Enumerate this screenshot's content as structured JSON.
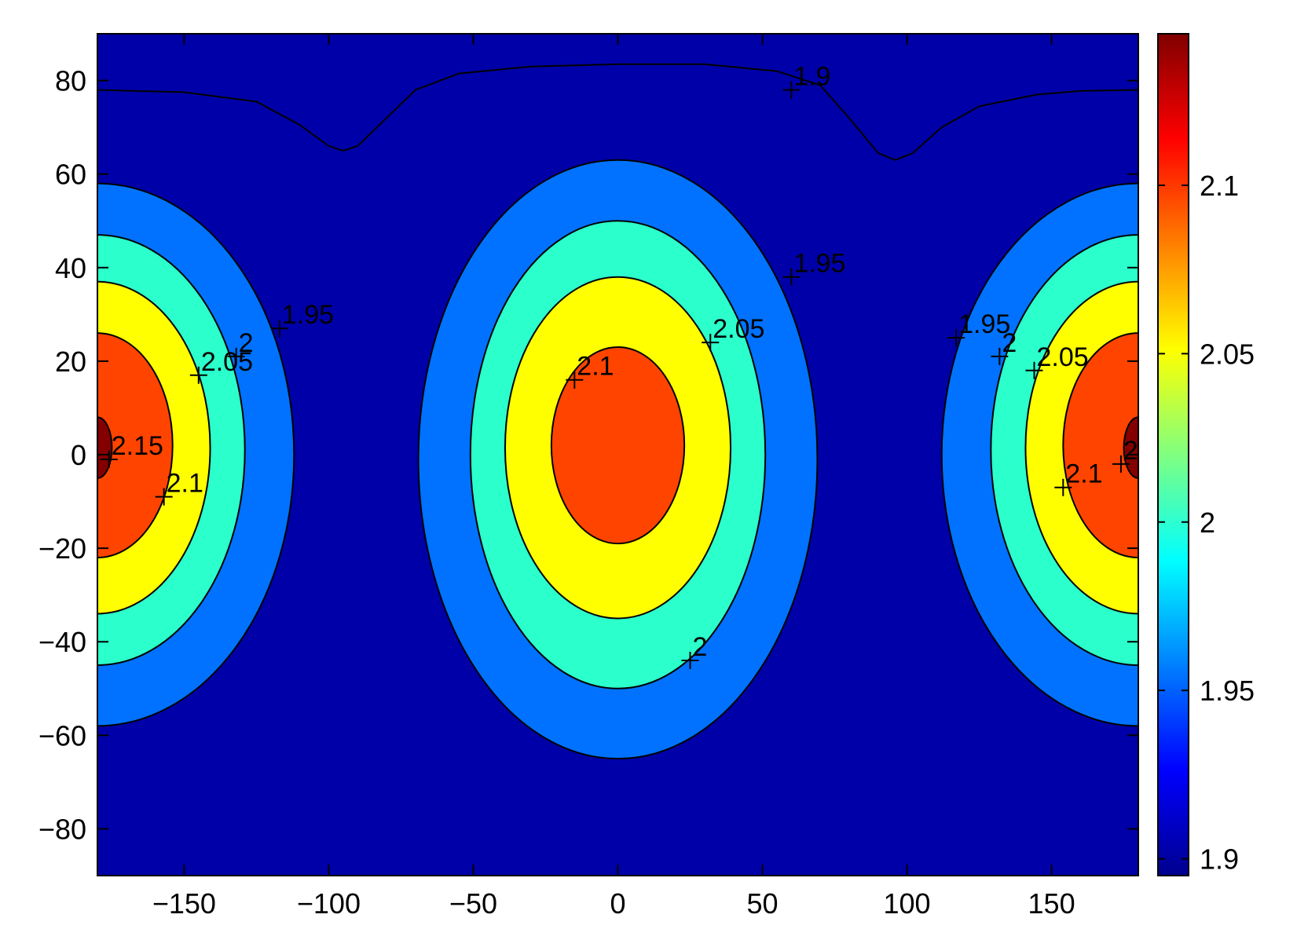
{
  "chart_data": {
    "type": "contourf",
    "title": "",
    "xlabel": "",
    "ylabel": "",
    "xlim": [
      -180,
      180
    ],
    "ylim": [
      -90,
      90
    ],
    "x_ticks": [
      -150,
      -100,
      -50,
      0,
      50,
      100,
      150
    ],
    "x_tick_labels": [
      "−150",
      "−100",
      "−50",
      "0",
      "50",
      "100",
      "150"
    ],
    "y_ticks": [
      80,
      60,
      40,
      20,
      0,
      -20,
      -40,
      -60,
      -80
    ],
    "y_tick_labels": [
      "80",
      "60",
      "40",
      "20",
      "0",
      "−20",
      "−40",
      "−60",
      "−80"
    ],
    "contour_levels": [
      1.9,
      1.95,
      2.0,
      2.05,
      2.1,
      2.15
    ],
    "level_fill_colors": {
      "below_1.9": "#0000A8",
      "1.9-1.95": "#0000A8",
      "1.95-2.0": "#0072FF",
      "2.0-2.05": "#2BFFCB",
      "2.05-2.1": "#FFFF00",
      "2.1-2.15": "#FF4400",
      "above_2.15": "#840000"
    },
    "highs": [
      {
        "x": 0,
        "y": 2,
        "peak": 2.13
      },
      {
        "x": -180,
        "y": 2,
        "peak": 2.17
      },
      {
        "x": 180,
        "y": 2,
        "peak": 2.17
      }
    ],
    "contour_labels": [
      {
        "text": "1.9",
        "x": 60,
        "y": 78
      },
      {
        "text": "1.95",
        "x": 60,
        "y": 38
      },
      {
        "text": "2.05",
        "x": 32,
        "y": 24
      },
      {
        "text": "2.1",
        "x": -15,
        "y": 16
      },
      {
        "text": "2",
        "x": 25,
        "y": -44
      },
      {
        "text": "1.95",
        "x": -117,
        "y": 27
      },
      {
        "text": "2",
        "x": -132,
        "y": 21
      },
      {
        "text": "2.05",
        "x": -145,
        "y": 17
      },
      {
        "text": "2.15",
        "x": -176,
        "y": -1
      },
      {
        "text": "2.1",
        "x": -157,
        "y": -9
      },
      {
        "text": "1.95",
        "x": 117,
        "y": 25
      },
      {
        "text": "2",
        "x": 132,
        "y": 21
      },
      {
        "text": "2.05",
        "x": 144,
        "y": 18
      },
      {
        "text": "2.1",
        "x": 154,
        "y": -7
      },
      {
        "text": "2",
        "x": 174,
        "y": -2
      }
    ],
    "colorbar": {
      "range": [
        1.895,
        2.145
      ],
      "ticks": [
        2.1,
        2.05,
        2.0,
        1.95,
        1.9
      ],
      "tick_labels": [
        "2.1",
        "2.05",
        "2",
        "1.95",
        "1.9"
      ],
      "colormap": "jet"
    },
    "grid": false,
    "legend": "none"
  }
}
